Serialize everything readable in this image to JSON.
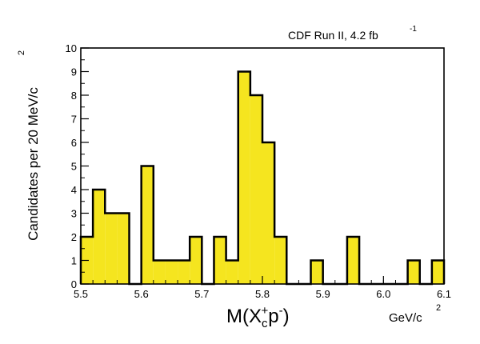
{
  "chart_data": {
    "type": "bar",
    "subtype": "histogram",
    "annotation": {
      "text": "CDF Run II, 4.2 fb",
      "superscript": "-1"
    },
    "xlabel": {
      "main": "M(Χ",
      "sub": "c",
      "sup": "+",
      "tail": "p",
      "tail_sup": "-",
      "close": ")"
    },
    "xunit": {
      "text": "GeV/c",
      "sup": "2"
    },
    "ylabel": {
      "text": "Candidates per 20 MeV/c",
      "sup": "2"
    },
    "xlim": [
      5.5,
      6.1
    ],
    "ylim": [
      0,
      10
    ],
    "bin_width": 0.02,
    "bin_start": 5.5,
    "values": [
      2,
      4,
      3,
      3,
      0,
      5,
      1,
      1,
      1,
      2,
      0,
      2,
      1,
      9,
      8,
      6,
      2,
      0,
      0,
      1,
      0,
      0,
      2,
      0,
      0,
      0,
      0,
      1,
      0,
      1
    ],
    "x_ticks": [
      "5.5",
      "5.6",
      "5.7",
      "5.8",
      "5.9",
      "6.0",
      "6.1"
    ],
    "y_ticks": [
      "0",
      "1",
      "2",
      "3",
      "4",
      "5",
      "6",
      "7",
      "8",
      "9",
      "10"
    ],
    "fill_color": "#f5e51f",
    "line_color": "#000000"
  }
}
